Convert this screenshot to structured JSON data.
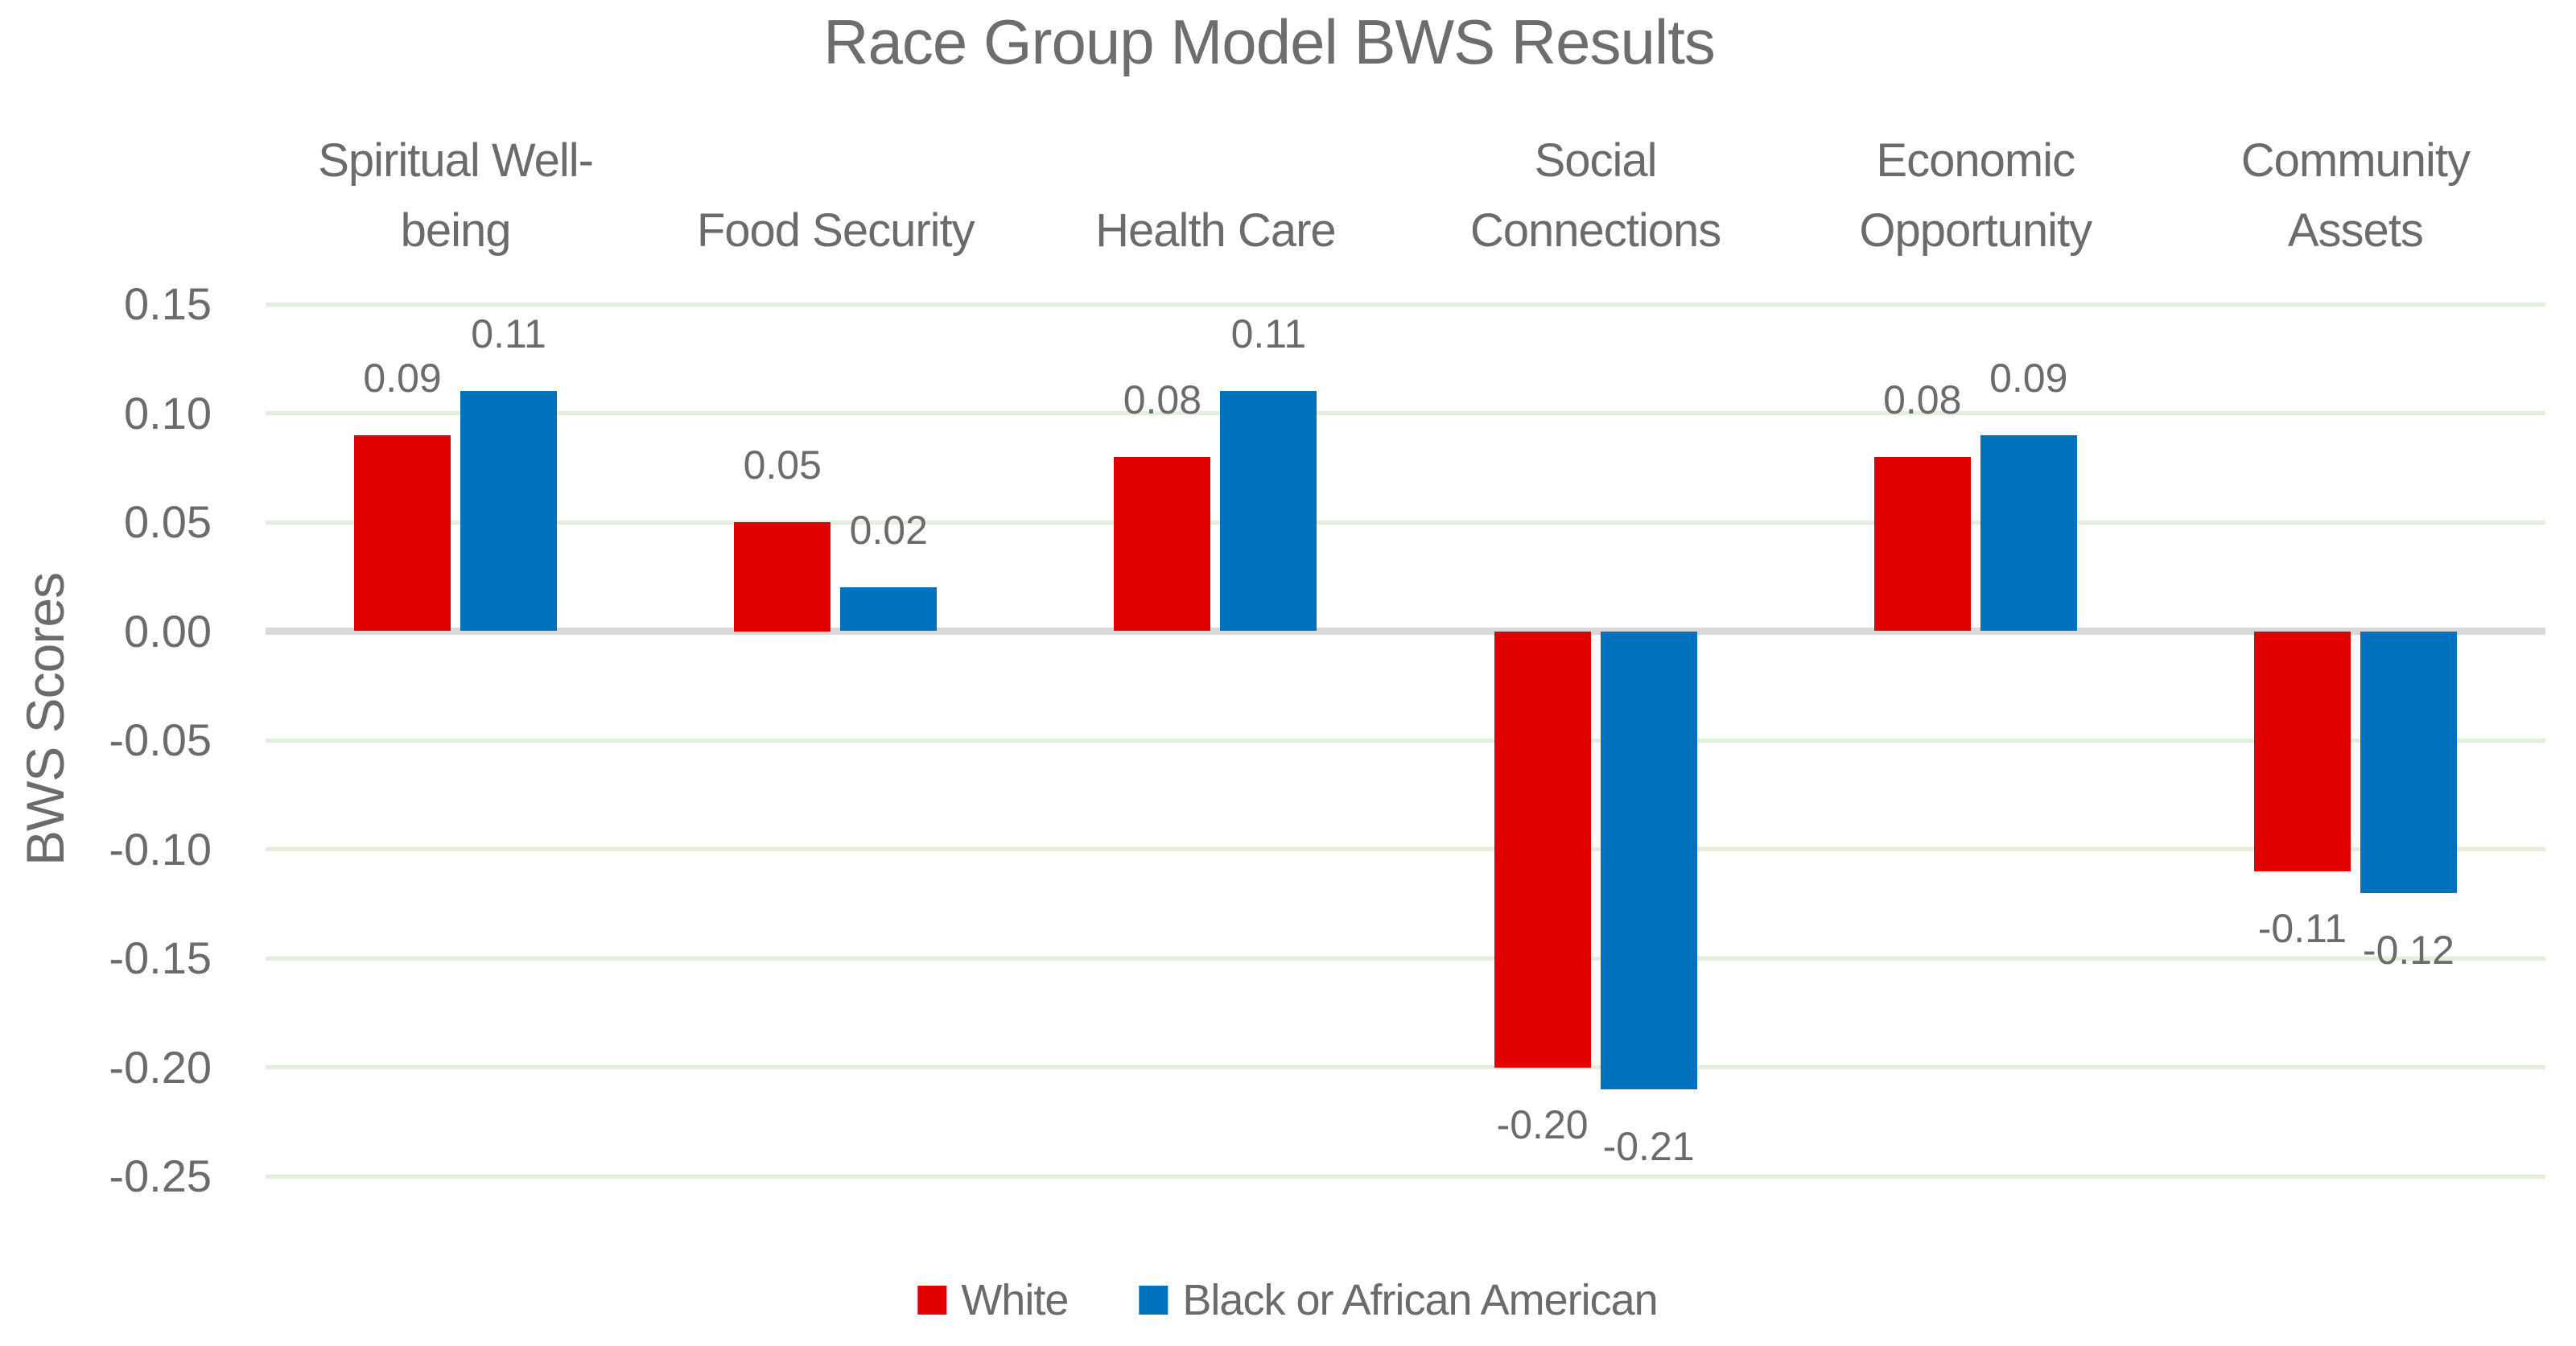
{
  "title": "Race Group Model BWS Results",
  "chart_data": {
    "type": "bar",
    "title": "Race Group Model BWS Results",
    "xlabel": "",
    "ylabel": "BWS Scores",
    "categories": [
      "Spiritual Well-being",
      "Food Security",
      "Health Care",
      "Social Connections",
      "Economic Opportunity",
      "Community Assets"
    ],
    "category_label_lines": [
      [
        "Spiritual Well-",
        "being"
      ],
      [
        "Food Security"
      ],
      [
        "Health Care"
      ],
      [
        "Social",
        "Connections"
      ],
      [
        "Economic",
        "Opportunity"
      ],
      [
        "Community",
        "Assets"
      ]
    ],
    "series": [
      {
        "name": "White",
        "color": "#e00000",
        "values": [
          0.09,
          0.05,
          0.08,
          -0.2,
          0.08,
          -0.11
        ],
        "labels": [
          "0.09",
          "0.05",
          "0.08",
          "-0.20",
          "0.08",
          "-0.11"
        ]
      },
      {
        "name": "Black or African American",
        "color": "#0071bc",
        "values": [
          0.11,
          0.02,
          0.11,
          -0.21,
          0.09,
          -0.12
        ],
        "labels": [
          "0.11",
          "0.02",
          "0.11",
          "-0.21",
          "0.09",
          "-0.12"
        ]
      }
    ],
    "ylim": [
      -0.25,
      0.15
    ],
    "ytick_step": 0.05,
    "yticks": [
      "0.15",
      "0.10",
      "0.05",
      "0.00",
      "-0.05",
      "-0.10",
      "-0.15",
      "-0.20",
      "-0.25"
    ],
    "grid": true,
    "gridline_color": "#e2efda",
    "zero_axis_color": "#d8d8d8",
    "text_color": "#6b6b6b",
    "legend_position": "bottom"
  }
}
